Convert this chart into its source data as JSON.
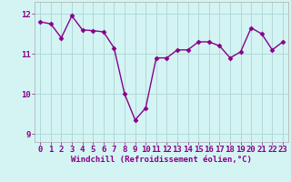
{
  "x": [
    0,
    1,
    2,
    3,
    4,
    5,
    6,
    7,
    8,
    9,
    10,
    11,
    12,
    13,
    14,
    15,
    16,
    17,
    18,
    19,
    20,
    21,
    22,
    23
  ],
  "y": [
    11.8,
    11.75,
    11.4,
    11.95,
    11.6,
    11.58,
    11.55,
    11.15,
    10.0,
    9.35,
    9.65,
    10.9,
    10.9,
    11.1,
    11.1,
    11.3,
    11.3,
    11.2,
    10.9,
    11.05,
    11.65,
    11.5,
    11.1,
    11.3
  ],
  "line_color": "#880088",
  "marker": "D",
  "marker_size": 2.5,
  "bg_color": "#d4f4f4",
  "grid_color": "#b0d8d8",
  "xlabel": "Windchill (Refroidissement éolien,°C)",
  "xlim": [
    -0.5,
    23.5
  ],
  "ylim": [
    8.8,
    12.3
  ],
  "yticks": [
    9,
    10,
    11,
    12
  ],
  "xticks": [
    0,
    1,
    2,
    3,
    4,
    5,
    6,
    7,
    8,
    9,
    10,
    11,
    12,
    13,
    14,
    15,
    16,
    17,
    18,
    19,
    20,
    21,
    22,
    23
  ],
  "xlabel_fontsize": 6.5,
  "tick_fontsize": 6.5,
  "linewidth": 1.0
}
